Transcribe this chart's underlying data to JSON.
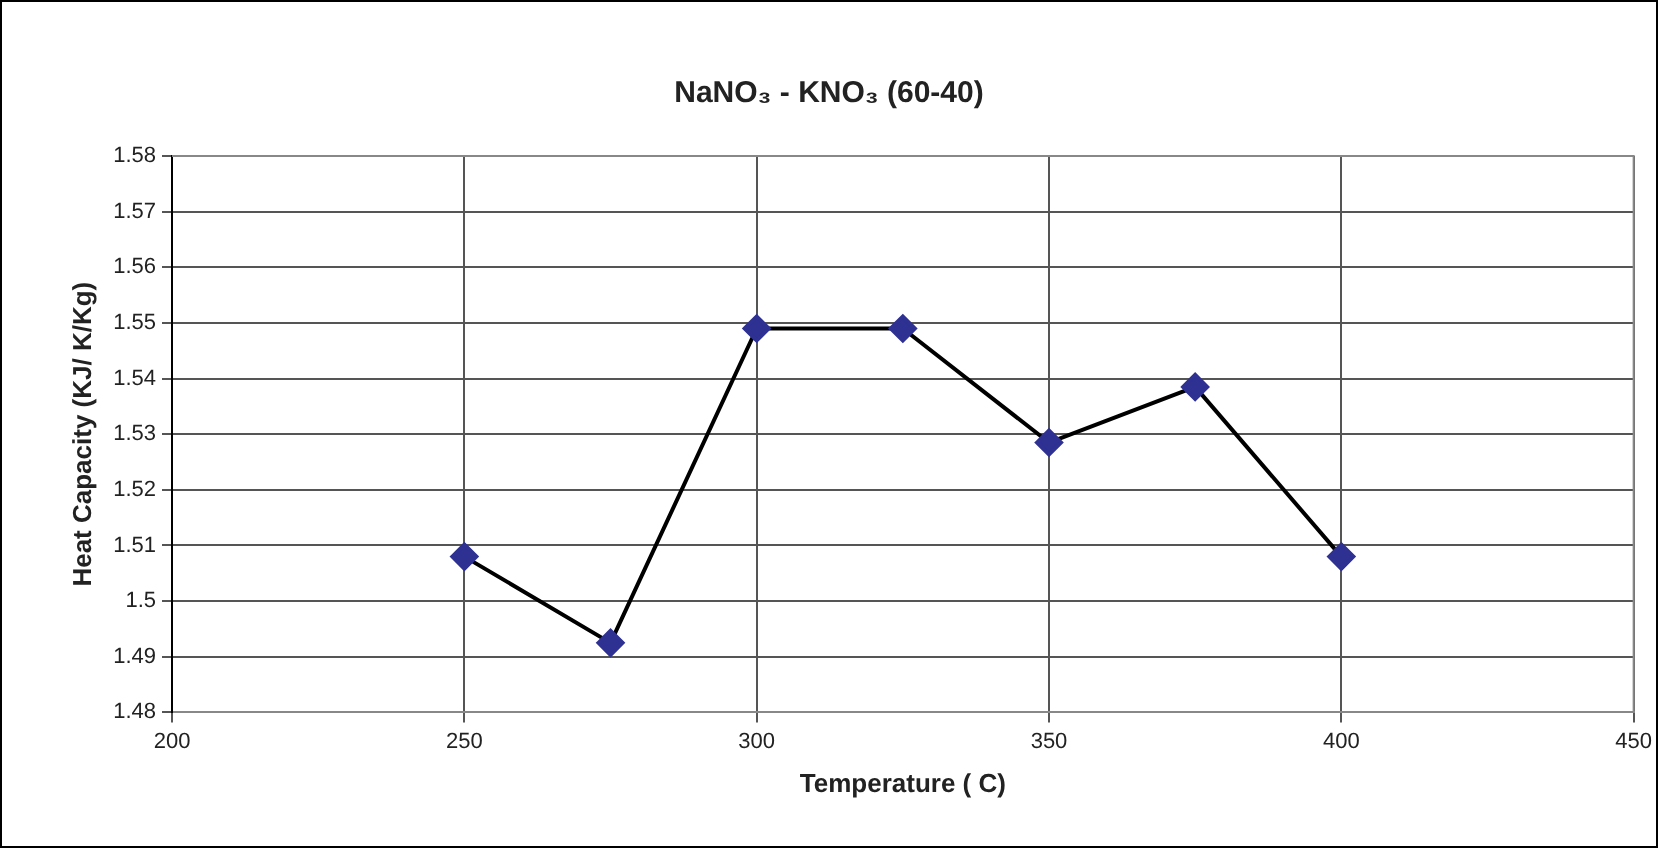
{
  "chart_data": {
    "type": "line",
    "title": "NaNO₃ - KNO₃ (60-40)",
    "xlabel": "Temperature ( C)",
    "ylabel": "Heat Capacity (KJ/ K/Kg)",
    "x": [
      250,
      275,
      300,
      325,
      350,
      375,
      400
    ],
    "series": [
      {
        "color": "#2e3192",
        "values": [
          1.508,
          1.4925,
          1.549,
          1.549,
          1.5285,
          1.5385,
          1.508
        ]
      }
    ],
    "xlim": [
      200,
      450
    ],
    "xticks": [
      200,
      250,
      300,
      350,
      400,
      450
    ],
    "ylim": [
      1.48,
      1.58
    ],
    "yticks": [
      1.48,
      1.49,
      1.5,
      1.51,
      1.52,
      1.53,
      1.54,
      1.55,
      1.56,
      1.57,
      1.58
    ],
    "grid": true,
    "legend": false,
    "marker": "diamond",
    "line_style": "solid"
  }
}
